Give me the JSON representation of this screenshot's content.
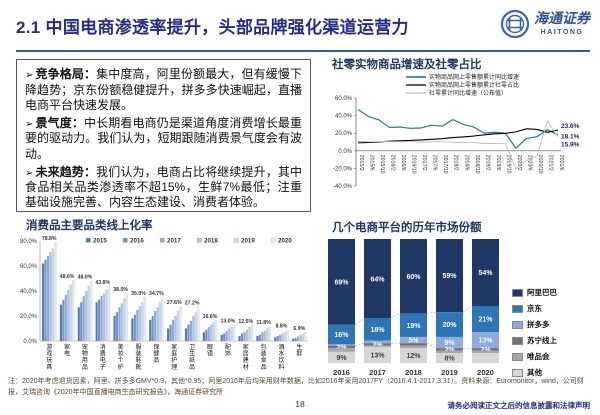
{
  "header": {
    "title": "2.1 中国电商渗透率提升，头部品牌强化渠道运营力",
    "logo_cn": "海通证券",
    "logo_en": "HAITONG"
  },
  "insights": {
    "bullet": "➢",
    "items": [
      {
        "label": "竞争格局：",
        "text": "集中度高，阿里份额最大，但有缓慢下降趋势；京东份额稳健提升，拼多多快速崛起，直播电商平台快速发展。"
      },
      {
        "label": "景气度：",
        "text": "中长期看电商仍是渠道角度消费增长最重要的驱动力。我们认为，短期跟随消费景气度会有波动。"
      },
      {
        "label": "未来趋势：",
        "text": "我们认为，电商占比将继续提升，其中食品相关品类渗透率不超15%，生鲜7%最低；注重基础设施完善、内容生态建设、消费者体验。"
      }
    ]
  },
  "chart_data": [
    {
      "id": "retail-growth-line",
      "type": "line",
      "title": "社零实物商品增速及社零占比",
      "x": [
        "2015/2",
        "2015/6",
        "2015/10",
        "2016/2",
        "2016/6",
        "2016/10",
        "2017/2",
        "2017/6",
        "2017/10",
        "2018/2",
        "2018/6",
        "2018/10",
        "2019/2",
        "2019/6",
        "2019/10",
        "2020/2",
        "2020/6",
        "2020/10",
        "2021/2",
        "2021/6"
      ],
      "ylim": [
        -40,
        60
      ],
      "yticks": [
        "60.0%",
        "40.0%",
        "20.0%",
        "0.0%",
        "-20.0%",
        "-40.0%"
      ],
      "legend_position": "top",
      "grid": false,
      "series": [
        {
          "name": "实物商品网上零售额累计同比增速",
          "color": "#31849b",
          "values": [
            47,
            39,
            35,
            26.5,
            27,
            25.5,
            26,
            29,
            28,
            35.5,
            30,
            27,
            20,
            21,
            20,
            3,
            14,
            16,
            24,
            18.1
          ]
        },
        {
          "name": "实物商品网上零售额累计社零占比",
          "color": "#000000",
          "values": [
            9,
            9.5,
            10,
            11,
            11.3,
            11.8,
            12.3,
            13,
            13.8,
            15,
            15.8,
            16.8,
            18.2,
            19.3,
            19.8,
            21.5,
            25,
            24.3,
            21,
            23.6
          ]
        },
        {
          "name": "社零累计同比增速（公布值）",
          "color": "#bfbfbf",
          "values": [
            10.7,
            10.4,
            10.5,
            10.3,
            10.3,
            10.3,
            10,
            10.4,
            10.3,
            9.7,
            9.4,
            9.2,
            8.2,
            8.4,
            8.1,
            -20.5,
            -11.4,
            -5.9,
            33.8,
            15.9
          ]
        }
      ],
      "end_labels": [
        "23.6%",
        "18.1%",
        "15.9%"
      ],
      "end_label_color": "#1f1f78"
    },
    {
      "id": "category-online-penetration",
      "type": "bar",
      "title": "消费品主要品类线上化率",
      "legend": [
        "2015",
        "2016",
        "2017",
        "2018",
        "2019",
        "2020"
      ],
      "series_colors": [
        "#4f7ab3",
        "#6d92c4",
        "#8caad3",
        "#aec3e0",
        "#c9d7ea",
        "#e3ebf4"
      ],
      "categories": [
        "游戏玩具",
        "家电",
        "宠物用品",
        "消费电子",
        "美妆个护",
        "服装鞋靴",
        "保健品",
        "家庭护理",
        "卫生纸品",
        "眼镜",
        "配饰",
        "家居建材",
        "包装食品",
        "酒水饮料",
        "生鲜"
      ],
      "values": [
        [
          62,
          65,
          68,
          71,
          74,
          78.8
        ],
        [
          29,
          33,
          37,
          41,
          45,
          48.6
        ],
        [
          27,
          31,
          36,
          40,
          44,
          48.0
        ],
        [
          31,
          33,
          36,
          38,
          41,
          43.8
        ],
        [
          20,
          23,
          27,
          30,
          34,
          38.0
        ],
        [
          18,
          21,
          25,
          28,
          31,
          35.0
        ],
        [
          17,
          20,
          24,
          27,
          31,
          34.7
        ],
        [
          10,
          13,
          17,
          20,
          24,
          27.6
        ],
        [
          10,
          13,
          16,
          20,
          23,
          27.2
        ],
        [
          7,
          9,
          11,
          13,
          15,
          16.6
        ],
        [
          5,
          6,
          8,
          10,
          11,
          13.0
        ],
        [
          4,
          6,
          7,
          9,
          11,
          12.5
        ],
        [
          4,
          5,
          7,
          8,
          10,
          11.8
        ],
        [
          3,
          4,
          5,
          6,
          7,
          8.8
        ],
        [
          2,
          2.5,
          3.5,
          4.5,
          5.5,
          6.9
        ]
      ],
      "labels": [
        "78.8%",
        "48.6%",
        "48.0%",
        "43.8%",
        "38.0%",
        "35.0%",
        "34.7%",
        "27.6%",
        "27.2%",
        "16.6%",
        "13.0%",
        "12.5%",
        "11.8%",
        "8.8%",
        "6.9%"
      ],
      "ylim": [
        0,
        80
      ],
      "yticks": [
        "80.0%",
        "60.0%",
        "40.0%",
        "20.0%",
        "0.0%"
      ],
      "grid": false
    },
    {
      "id": "platform-market-share",
      "type": "bar",
      "stacked": true,
      "title": "几个电商平台的历年市场份额",
      "categories": [
        "2016",
        "2017",
        "2018",
        "2019",
        "2020"
      ],
      "legend_position": "right",
      "series": [
        {
          "name": "阿里巴巴",
          "color": "#1f3864",
          "label_color": "#ffffff",
          "values": [
            69,
            64,
            60,
            59,
            54
          ],
          "labels": [
            "69%",
            "64%",
            "60%",
            "59%",
            "54%"
          ]
        },
        {
          "name": "京东",
          "color": "#2e75b6",
          "label_color": "#ffffff",
          "values": [
            16,
            18,
            19,
            20,
            21
          ],
          "labels": [
            "16%",
            "18%",
            "19%",
            "20%",
            "21%"
          ]
        },
        {
          "name": "拼多多",
          "color": "#8faadc",
          "label_color": "#ffffff",
          "values": [
            1,
            2,
            5,
            9,
            13
          ],
          "labels": [
            "",
            "",
            "5%",
            "9%",
            "13%"
          ]
        },
        {
          "name": "苏宁线上",
          "color": "#767171",
          "label_color": "#ffffff",
          "values": [
            2,
            2,
            2,
            2,
            2
          ],
          "labels": [
            "2%",
            "2%",
            "",
            "2%",
            "2%"
          ]
        },
        {
          "name": "唯品会",
          "color": "#a6a6a6",
          "label_color": "",
          "values": [
            3,
            1,
            2,
            2,
            2
          ],
          "labels": [
            "",
            "",
            "",
            "",
            ""
          ]
        },
        {
          "name": "其他",
          "color": "#d6d6d6",
          "label_color": "#404040",
          "values": [
            9,
            13,
            12,
            8,
            8
          ],
          "labels": [
            "9%",
            "13%",
            "12%",
            "8%",
            ""
          ]
        }
      ]
    }
  ],
  "footer": {
    "note": "注：2020年考虑退货因素，阿里、拼多多GMV*0.9，其他*0.95；阿里2016年后均采用财年数据，比如2016年采用2017FY（2016.4.1-2017.3.31）。资料来源：Euromonitor，wind，公司财报，艾瑞咨询《2020年中国直播电商生态研究报告》，海通证券研究所",
    "page": "18",
    "disclaimer": "请务必阅读正文之后的信息披露和法律声明"
  }
}
